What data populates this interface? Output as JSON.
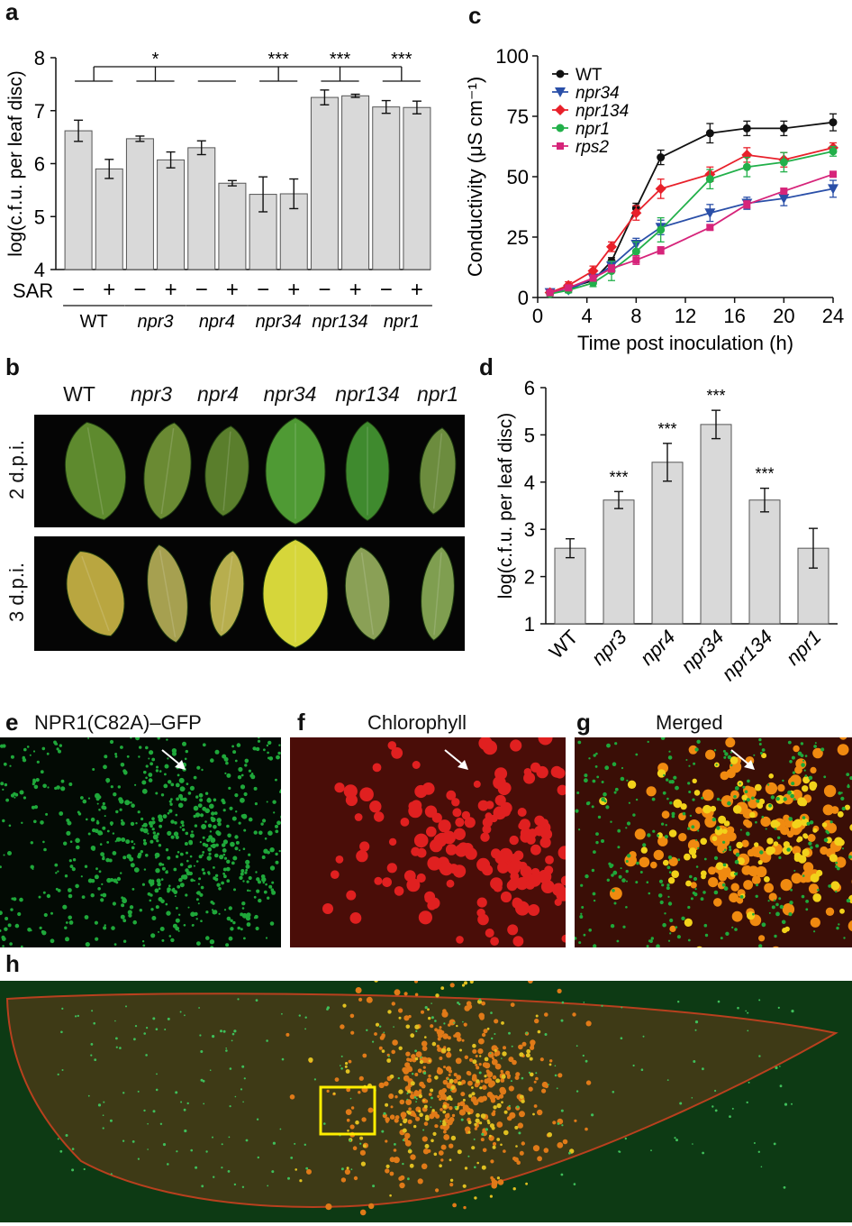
{
  "panels": {
    "a": {
      "letter": "a"
    },
    "b": {
      "letter": "b"
    },
    "c": {
      "letter": "c"
    },
    "d": {
      "letter": "d"
    },
    "e": {
      "letter": "e",
      "title": "NPR1(C82A)–GFP"
    },
    "f": {
      "letter": "f",
      "title": "Chlorophyll"
    },
    "g": {
      "letter": "g",
      "title": "Merged"
    },
    "h": {
      "letter": "h"
    }
  },
  "leaf_photos": {
    "columns": [
      "WT",
      "npr3",
      "npr4",
      "npr34",
      "npr134",
      "npr1"
    ],
    "rows": [
      "2 d.p.i.",
      "3 d.p.i."
    ]
  },
  "colors": {
    "bar_fill": "#d9d9d9",
    "wt": "#111111",
    "npr34": "#2a4fa8",
    "npr134": "#e8202a",
    "npr1": "#22b04a",
    "rps2": "#d6247a",
    "micrograph_green": "#1fa83a",
    "micrograph_red": "#e02020",
    "highlight_box": "#ffee00"
  },
  "chart_data": [
    {
      "id": "a",
      "type": "bar",
      "ylabel": "log(c.f.u. per leaf disc)",
      "ylim": [
        4,
        8
      ],
      "yticks": [
        4,
        5,
        6,
        7,
        8
      ],
      "row_label": "SAR",
      "bar_signs": [
        "−",
        "+",
        "−",
        "+",
        "−",
        "+",
        "−",
        "+",
        "−",
        "+",
        "−",
        "+"
      ],
      "groups": [
        "WT",
        "npr3",
        "npr4",
        "npr34",
        "npr134",
        "npr1"
      ],
      "values": [
        6.62,
        5.9,
        6.47,
        6.07,
        6.3,
        5.63,
        5.42,
        5.43,
        7.25,
        7.28,
        7.07,
        7.06
      ],
      "errors": [
        0.2,
        0.18,
        0.05,
        0.15,
        0.13,
        0.05,
        0.33,
        0.28,
        0.14,
        0.03,
        0.12,
        0.12
      ],
      "significance": [
        {
          "group": 1,
          "label": "*"
        },
        {
          "group": 3,
          "label": "***"
        },
        {
          "group": 4,
          "label": "***"
        },
        {
          "group": 5,
          "label": "***"
        }
      ]
    },
    {
      "id": "c",
      "type": "line",
      "xlabel": "Time post inoculation (h)",
      "ylabel": "Conductivity (μS cm⁻¹)",
      "xlim": [
        0,
        24
      ],
      "ylim": [
        0,
        100
      ],
      "xticks": [
        0,
        4,
        8,
        12,
        16,
        20,
        24
      ],
      "yticks": [
        0,
        25,
        50,
        75,
        100
      ],
      "legend": "top-left",
      "x": [
        1,
        2.5,
        4.5,
        6,
        8,
        10,
        14,
        17,
        20,
        24
      ],
      "series": [
        {
          "name": "WT",
          "marker": "circle",
          "values": [
            2,
            4,
            7,
            15,
            37,
            58,
            68,
            70,
            70,
            72.5
          ],
          "errors": [
            0.8,
            1,
            1.2,
            1.5,
            2,
            3,
            4,
            3,
            3,
            3.5
          ]
        },
        {
          "name": "npr34",
          "marker": "triangle",
          "values": [
            2,
            3,
            8,
            13,
            22,
            29,
            35,
            39,
            41,
            45
          ],
          "errors": [
            0.8,
            1,
            1.5,
            2,
            2.5,
            3,
            3.5,
            2.5,
            3,
            3.5
          ]
        },
        {
          "name": "npr134",
          "marker": "diamond",
          "values": [
            2,
            5,
            11,
            21,
            35,
            45,
            51,
            59,
            57,
            62
          ],
          "errors": [
            0.8,
            1.5,
            2,
            2,
            3,
            4,
            3,
            3,
            3,
            2
          ]
        },
        {
          "name": "npr1",
          "marker": "circle",
          "values": [
            1.5,
            3,
            6,
            11,
            19,
            28,
            49,
            54,
            56,
            60.5
          ],
          "errors": [
            0.8,
            1,
            1.5,
            4,
            4,
            5,
            4,
            4,
            4,
            2
          ]
        },
        {
          "name": "rps2",
          "marker": "square",
          "values": [
            2,
            4,
            8,
            12,
            15.5,
            19.5,
            29,
            38.5,
            44,
            51
          ],
          "errors": [
            0.6,
            0.8,
            1.2,
            1.5,
            1.8,
            1.5,
            1,
            1.5,
            1.2,
            1
          ]
        }
      ]
    },
    {
      "id": "d",
      "type": "bar",
      "ylabel": "log(c.f.u. per leaf disc)",
      "ylim": [
        1,
        6
      ],
      "yticks": [
        1,
        2,
        3,
        4,
        5,
        6
      ],
      "categories": [
        "WT",
        "npr3",
        "npr4",
        "npr34",
        "npr134",
        "npr1"
      ],
      "values": [
        2.6,
        3.62,
        4.42,
        5.22,
        3.62,
        2.6
      ],
      "errors": [
        0.2,
        0.18,
        0.4,
        0.3,
        0.25,
        0.42
      ],
      "significance": [
        "",
        "***",
        "***",
        "***",
        "***",
        ""
      ]
    }
  ]
}
